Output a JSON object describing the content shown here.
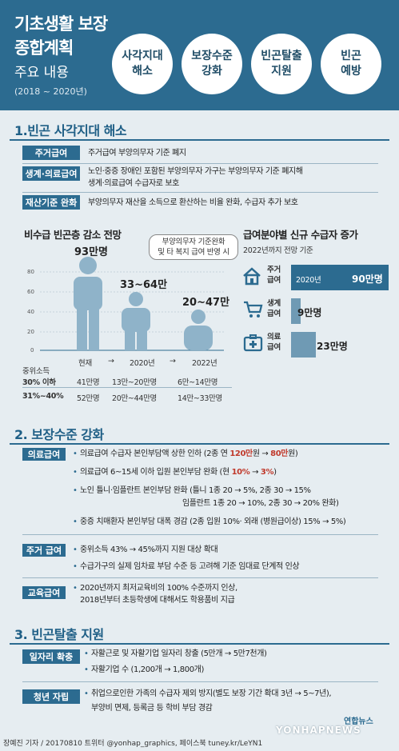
{
  "header": {
    "title_line1": "기초생활 보장",
    "title_line2": "종합계획",
    "subtitle": "주요 내용",
    "period": "(2018 ~ 2020년)"
  },
  "goals": [
    "사각지대\n해소",
    "보장수준\n강화",
    "빈곤탈출\n지원",
    "빈곤\n예방"
  ],
  "section1": {
    "title": "1.빈곤 사각지대 해소",
    "rows": [
      {
        "tag": "주거급여",
        "text": "주거급여 부양의무자 기준 폐지"
      },
      {
        "tag": "생계·의료급여",
        "text": "노인·중증 장애인 포함된 부양의무자 가구는 부양의무자 기준 폐지해",
        "text2": "생계·의료급여 수급자로 보호"
      },
      {
        "tag": "재산기준 완화",
        "text": "부양의무자 재산을 소득으로 환산하는 비율 완화, 수급자 추가 보호"
      }
    ],
    "chart1": {
      "title": "비수급 빈곤층 감소 전망",
      "callout_l1": "부양의무자 기준완화",
      "callout_l2": "및 타 복지 급여 반영 시",
      "values": [
        "93만명",
        "33~64만",
        "20~47만"
      ],
      "yticks": [
        "80",
        "60",
        "40",
        "20",
        "0"
      ],
      "x_labels": [
        "현재",
        "→",
        "2020년",
        "→",
        "2022년"
      ],
      "income_label": "중위소득",
      "rows": [
        {
          "label": "30% 이하",
          "vals": [
            "41만명",
            "13만~20만명",
            "6만~14만명"
          ]
        },
        {
          "label": "31%~40%",
          "vals": [
            "52만명",
            "20만~44만명",
            "14만~33만명"
          ]
        }
      ]
    },
    "chart_data": {
      "type": "bar",
      "title": "급여분야별 신규 수급자 증가",
      "subtitle": "2022년까지 전망 기준",
      "categories": [
        "주거\n급여",
        "생계\n급여",
        "의료\n급여"
      ],
      "values": [
        90,
        9,
        23
      ],
      "value_labels": [
        "90만명",
        "9만명",
        "23만명"
      ],
      "bar_annotation": "2020년",
      "unit": "만명"
    }
  },
  "section2": {
    "title": "2. 보장수준 강화",
    "medical": {
      "tag": "의료급여",
      "b1": "의료급여 수급자 본인부담액 상한 인하 (2종 연 ",
      "b1a": "120만",
      "b1b": "원 → ",
      "b1c": "80만",
      "b1d": "원)",
      "b2": "의료급여 6~15세 이하 입원 본인부담 완화 (현 ",
      "b2a": "10%",
      "b2b": " → ",
      "b2c": "3%",
      "b2d": ")",
      "b3": "노인 틀니·임플란트 본인부담 완화 (틀니 1종 20 → 5%, 2종 30 → 15%",
      "b3b": "임플란트 1종 20 → 10%, 2종 30 → 20% 완화)",
      "b4": "중증 치매환자 본인부담 대폭 경감 (2종 입원 10%· 외래 (병원급이상) 15% → 5%)"
    },
    "housing": {
      "tag": "주거 급여",
      "b1": "중위소득 43% → 45%까지 지원 대상 확대",
      "b2": "수급가구의 실제 임차료 부담 수준 등 고려해 기준 임대료 단계적 인상"
    },
    "education": {
      "tag": "교육급여",
      "b1": "2020년까지 최저교육비의 100% 수준까지 인상,",
      "b2": "2018년부터 초등학생에 대해서도 학용품비 지급"
    }
  },
  "section3": {
    "title": "3. 빈곤탈출 지원",
    "jobs": {
      "tag": "일자리 확충",
      "b1": "자활근로 및 자활기업 일자리 창출 (5만개 → 5만7천개)",
      "b2": "자활기업 수 (1,200개 → 1,800개)"
    },
    "youth": {
      "tag": "청년 자립",
      "b1": "취업으로인한 가족의 수급자 제외 방지(별도 보장 기간 확대 3년 → 5~7년),",
      "b2": "부양비 면제, 등록금 등 학비 부담 경감"
    }
  },
  "footer": {
    "credit": "장예진 기자 / 20170810 트위터 @yonhap_graphics, 페이스북 tuney.kr/LeYN1",
    "logo": "연합뉴스",
    "watermark": "YONHAPNEWS"
  },
  "colors": {
    "primary": "#2c6b90",
    "accent": "#c0392b",
    "bg": "#e6edf1",
    "figure": "#8fb3c9"
  }
}
